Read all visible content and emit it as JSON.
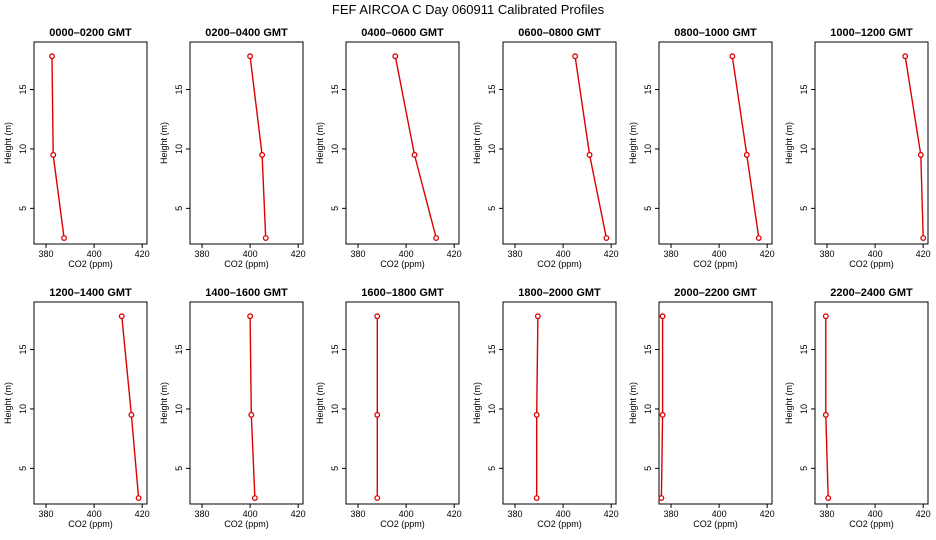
{
  "title": "FEF AIRCOA C  Day 060911  Calibrated Profiles",
  "colors": {
    "series": "#dd0000",
    "axes": "#000000",
    "background": "#ffffff"
  },
  "chart_data": [
    {
      "type": "line",
      "title": "0000–0200 GMT",
      "xlabel": "CO2 (ppm)",
      "ylabel": "Height (m)",
      "xlim": [
        375,
        422
      ],
      "ylim": [
        2,
        19
      ],
      "xticks": [
        380,
        400,
        420
      ],
      "yticks": [
        5,
        10,
        15
      ],
      "grid": false,
      "series": [
        {
          "x": [
            382.5,
            383.0,
            387.5
          ],
          "y": [
            17.8,
            9.5,
            2.5
          ]
        }
      ]
    },
    {
      "type": "line",
      "title": "0200–0400 GMT",
      "xlabel": "CO2 (ppm)",
      "ylabel": "Height (m)",
      "xlim": [
        375,
        422
      ],
      "ylim": [
        2,
        19
      ],
      "xticks": [
        380,
        400,
        420
      ],
      "yticks": [
        5,
        10,
        15
      ],
      "grid": false,
      "series": [
        {
          "x": [
            400.0,
            405.0,
            406.5
          ],
          "y": [
            17.8,
            9.5,
            2.5
          ]
        }
      ]
    },
    {
      "type": "line",
      "title": "0400–0600 GMT",
      "xlabel": "CO2 (ppm)",
      "ylabel": "Height (m)",
      "xlim": [
        375,
        422
      ],
      "ylim": [
        2,
        19
      ],
      "xticks": [
        380,
        400,
        420
      ],
      "yticks": [
        5,
        10,
        15
      ],
      "grid": false,
      "series": [
        {
          "x": [
            395.5,
            403.5,
            412.5
          ],
          "y": [
            17.8,
            9.5,
            2.5
          ]
        }
      ]
    },
    {
      "type": "line",
      "title": "0600–0800 GMT",
      "xlabel": "CO2 (ppm)",
      "ylabel": "Height (m)",
      "xlim": [
        375,
        422
      ],
      "ylim": [
        2,
        19
      ],
      "xticks": [
        380,
        400,
        420
      ],
      "yticks": [
        5,
        10,
        15
      ],
      "grid": false,
      "series": [
        {
          "x": [
            405.0,
            411.0,
            418.0
          ],
          "y": [
            17.8,
            9.5,
            2.5
          ]
        }
      ]
    },
    {
      "type": "line",
      "title": "0800–1000 GMT",
      "xlabel": "CO2 (ppm)",
      "ylabel": "Height (m)",
      "xlim": [
        375,
        422
      ],
      "ylim": [
        2,
        19
      ],
      "xticks": [
        380,
        400,
        420
      ],
      "yticks": [
        5,
        10,
        15
      ],
      "grid": false,
      "series": [
        {
          "x": [
            405.5,
            411.5,
            416.5
          ],
          "y": [
            17.8,
            9.5,
            2.5
          ]
        }
      ]
    },
    {
      "type": "line",
      "title": "1000–1200 GMT",
      "xlabel": "CO2 (ppm)",
      "ylabel": "Height (m)",
      "xlim": [
        375,
        422
      ],
      "ylim": [
        2,
        19
      ],
      "xticks": [
        380,
        400,
        420
      ],
      "yticks": [
        5,
        10,
        15
      ],
      "grid": false,
      "series": [
        {
          "x": [
            412.5,
            419.0,
            420.0
          ],
          "y": [
            17.8,
            9.5,
            2.5
          ]
        }
      ]
    },
    {
      "type": "line",
      "title": "1200–1400 GMT",
      "xlabel": "CO2 (ppm)",
      "ylabel": "Height (m)",
      "xlim": [
        375,
        422
      ],
      "ylim": [
        2,
        19
      ],
      "xticks": [
        380,
        400,
        420
      ],
      "yticks": [
        5,
        10,
        15
      ],
      "grid": false,
      "series": [
        {
          "x": [
            411.5,
            415.5,
            418.5
          ],
          "y": [
            17.8,
            9.5,
            2.5
          ]
        }
      ]
    },
    {
      "type": "line",
      "title": "1400–1600 GMT",
      "xlabel": "CO2 (ppm)",
      "ylabel": "Height (m)",
      "xlim": [
        375,
        422
      ],
      "ylim": [
        2,
        19
      ],
      "xticks": [
        380,
        400,
        420
      ],
      "yticks": [
        5,
        10,
        15
      ],
      "grid": false,
      "series": [
        {
          "x": [
            400.0,
            400.5,
            402.0
          ],
          "y": [
            17.8,
            9.5,
            2.5
          ]
        }
      ]
    },
    {
      "type": "line",
      "title": "1600–1800 GMT",
      "xlabel": "CO2 (ppm)",
      "ylabel": "Height (m)",
      "xlim": [
        375,
        422
      ],
      "ylim": [
        2,
        19
      ],
      "xticks": [
        380,
        400,
        420
      ],
      "yticks": [
        5,
        10,
        15
      ],
      "grid": false,
      "series": [
        {
          "x": [
            388.0,
            388.0,
            388.0
          ],
          "y": [
            17.8,
            9.5,
            2.5
          ]
        }
      ]
    },
    {
      "type": "line",
      "title": "1800–2000 GMT",
      "xlabel": "CO2 (ppm)",
      "ylabel": "Height (m)",
      "xlim": [
        375,
        422
      ],
      "ylim": [
        2,
        19
      ],
      "xticks": [
        380,
        400,
        420
      ],
      "yticks": [
        5,
        10,
        15
      ],
      "grid": false,
      "series": [
        {
          "x": [
            389.5,
            389.0,
            389.0
          ],
          "y": [
            17.8,
            9.5,
            2.5
          ]
        }
      ]
    },
    {
      "type": "line",
      "title": "2000–2200 GMT",
      "xlabel": "CO2 (ppm)",
      "ylabel": "Height (m)",
      "xlim": [
        375,
        422
      ],
      "ylim": [
        2,
        19
      ],
      "xticks": [
        380,
        400,
        420
      ],
      "yticks": [
        5,
        10,
        15
      ],
      "grid": false,
      "series": [
        {
          "x": [
            376.5,
            376.5,
            376.0
          ],
          "y": [
            17.8,
            9.5,
            2.5
          ]
        }
      ]
    },
    {
      "type": "line",
      "title": "2200–2400 GMT",
      "xlabel": "CO2 (ppm)",
      "ylabel": "Height (m)",
      "xlim": [
        375,
        422
      ],
      "ylim": [
        2,
        19
      ],
      "xticks": [
        380,
        400,
        420
      ],
      "yticks": [
        5,
        10,
        15
      ],
      "grid": false,
      "series": [
        {
          "x": [
            379.5,
            379.5,
            380.5
          ],
          "y": [
            17.8,
            9.5,
            2.5
          ]
        }
      ]
    }
  ]
}
